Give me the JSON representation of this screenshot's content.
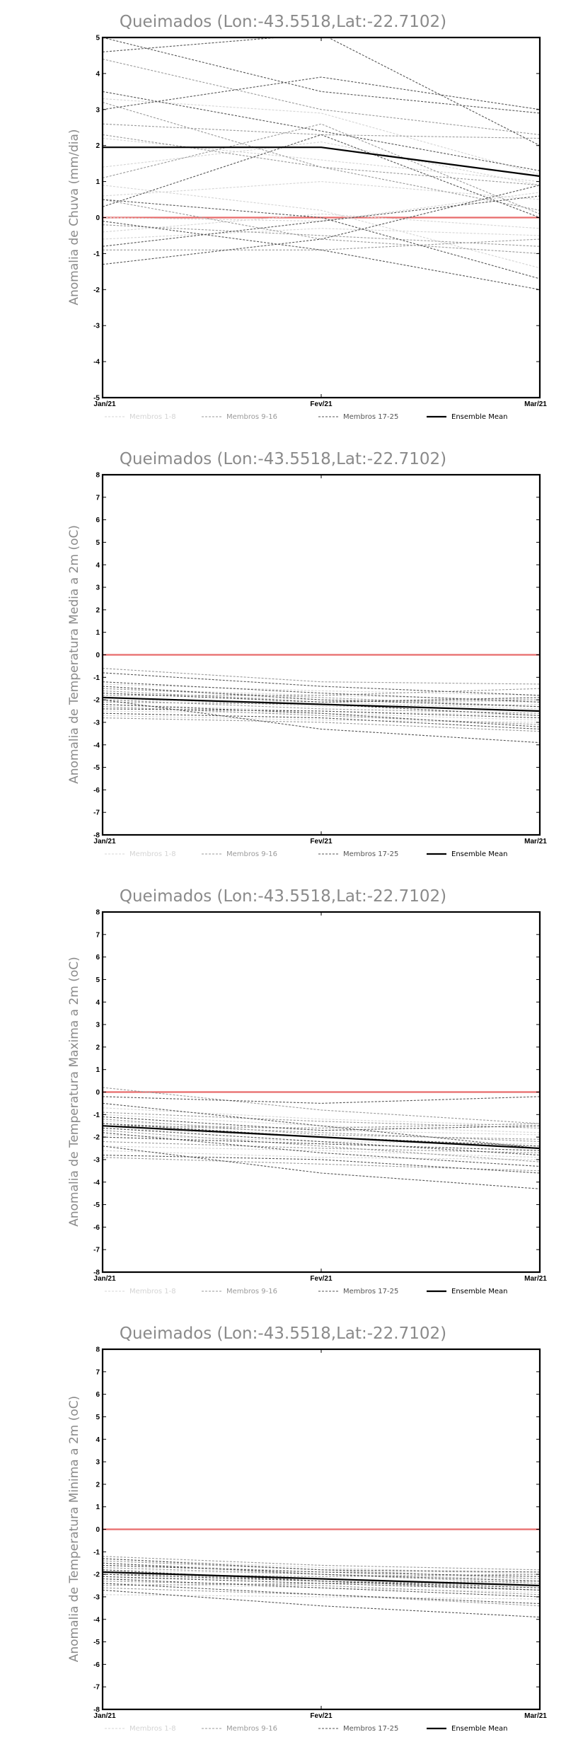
{
  "colors": {
    "group1": "#d4d4d4",
    "group2": "#9a9a9a",
    "group3": "#555555",
    "mean": "#000000",
    "zero_line": "#e86b6b",
    "text": "#8a8a8a"
  },
  "chart_data": [
    {
      "type": "line",
      "title": "Queimados (Lon:-43.5518,Lat:-22.7102)",
      "ylabel": "Anomalia de Chuva (mm/dia)",
      "x": [
        "Jan/21",
        "Fev/21",
        "Mar/21"
      ],
      "ylim": [
        -5,
        5
      ],
      "yticks": [
        -5,
        -4,
        -3,
        -2,
        -1,
        0,
        1,
        2,
        3,
        4,
        5
      ],
      "zero_line": 0,
      "grid": false,
      "legend": {
        "position": "bottom",
        "entries": [
          "Membros 1-8",
          "Membros 9-16",
          "Membros 17-25",
          "Ensemble Mean"
        ]
      },
      "series": [
        {
          "group": 1,
          "values": [
            3.3,
            2.9,
            1.2
          ]
        },
        {
          "group": 1,
          "values": [
            1.4,
            2.1,
            0.9
          ]
        },
        {
          "group": 1,
          "values": [
            0.6,
            1.0,
            0.5
          ]
        },
        {
          "group": 1,
          "values": [
            0.0,
            -0.1,
            0.7
          ]
        },
        {
          "group": 1,
          "values": [
            -0.4,
            0.1,
            -0.3
          ]
        },
        {
          "group": 1,
          "values": [
            2.2,
            1.6,
            1.0
          ]
        },
        {
          "group": 1,
          "values": [
            -0.6,
            -0.3,
            -0.5
          ]
        },
        {
          "group": 1,
          "values": [
            0.9,
            0.2,
            -1.4
          ]
        },
        {
          "group": 2,
          "values": [
            4.4,
            3.0,
            2.3
          ]
        },
        {
          "group": 2,
          "values": [
            3.2,
            1.4,
            0.2
          ]
        },
        {
          "group": 2,
          "values": [
            2.3,
            1.4,
            0.9
          ]
        },
        {
          "group": 2,
          "values": [
            0.5,
            -0.6,
            -1.0
          ]
        },
        {
          "group": 2,
          "values": [
            -0.2,
            -0.5,
            -0.8
          ]
        },
        {
          "group": 2,
          "values": [
            1.1,
            2.6,
            0.1
          ]
        },
        {
          "group": 2,
          "values": [
            -0.9,
            -0.9,
            -0.6
          ]
        },
        {
          "group": 2,
          "values": [
            2.6,
            2.3,
            2.2
          ]
        },
        {
          "group": 3,
          "values": [
            5.0,
            3.5,
            2.9
          ]
        },
        {
          "group": 3,
          "values": [
            3.5,
            2.4,
            1.3
          ]
        },
        {
          "group": 3,
          "values": [
            3.0,
            3.9,
            3.0
          ]
        },
        {
          "group": 3,
          "values": [
            0.3,
            2.3,
            0.0
          ]
        },
        {
          "group": 3,
          "values": [
            -0.1,
            -0.9,
            -2.0
          ]
        },
        {
          "group": 3,
          "values": [
            -1.3,
            -0.6,
            0.9
          ]
        },
        {
          "group": 3,
          "values": [
            -0.8,
            -0.1,
            0.6
          ]
        },
        {
          "group": 3,
          "values": [
            4.6,
            5.1,
            2.0
          ]
        },
        {
          "group": 3,
          "values": [
            0.5,
            0.0,
            -1.7
          ]
        },
        {
          "group": "mean",
          "values": [
            1.95,
            1.95,
            1.15
          ]
        }
      ]
    },
    {
      "type": "line",
      "title": "Queimados (Lon:-43.5518,Lat:-22.7102)",
      "ylabel": "Anomalia de Temperatura Media a 2m (oC)",
      "x": [
        "Jan/21",
        "Fev/21",
        "Mar/21"
      ],
      "ylim": [
        -8,
        8
      ],
      "yticks": [
        -8,
        -7,
        -6,
        -5,
        -4,
        -3,
        -2,
        -1,
        0,
        1,
        2,
        3,
        4,
        5,
        6,
        7,
        8
      ],
      "zero_line": 0,
      "grid": false,
      "legend": {
        "position": "bottom",
        "entries": [
          "Membros 1-8",
          "Membros 9-16",
          "Membros 17-25",
          "Ensemble Mean"
        ]
      },
      "series": [
        {
          "group": 1,
          "values": [
            -1.5,
            -1.8,
            -2.0
          ]
        },
        {
          "group": 1,
          "values": [
            -2.0,
            -2.1,
            -2.4
          ]
        },
        {
          "group": 1,
          "values": [
            -1.7,
            -2.0,
            -2.1
          ]
        },
        {
          "group": 1,
          "values": [
            -2.2,
            -2.5,
            -2.7
          ]
        },
        {
          "group": 1,
          "values": [
            -1.3,
            -1.6,
            -1.8
          ]
        },
        {
          "group": 1,
          "values": [
            -2.5,
            -2.6,
            -2.9
          ]
        },
        {
          "group": 1,
          "values": [
            -1.9,
            -2.3,
            -2.2
          ]
        },
        {
          "group": 1,
          "values": [
            -2.7,
            -2.9,
            -3.0
          ]
        },
        {
          "group": 2,
          "values": [
            -0.6,
            -1.2,
            -1.3
          ]
        },
        {
          "group": 2,
          "values": [
            -1.5,
            -1.9,
            -2.3
          ]
        },
        {
          "group": 2,
          "values": [
            -2.0,
            -2.4,
            -2.6
          ]
        },
        {
          "group": 2,
          "values": [
            -1.8,
            -1.8,
            -1.5
          ]
        },
        {
          "group": 2,
          "values": [
            -2.3,
            -2.7,
            -3.1
          ]
        },
        {
          "group": 2,
          "values": [
            -2.8,
            -3.0,
            -3.4
          ]
        },
        {
          "group": 2,
          "values": [
            -1.6,
            -2.1,
            -2.0
          ]
        },
        {
          "group": 2,
          "values": [
            -2.1,
            -2.2,
            -2.5
          ]
        },
        {
          "group": 3,
          "values": [
            -0.8,
            -1.4,
            -1.8
          ]
        },
        {
          "group": 3,
          "values": [
            -1.4,
            -2.0,
            -2.3
          ]
        },
        {
          "group": 3,
          "values": [
            -2.0,
            -3.3,
            -3.9
          ]
        },
        {
          "group": 3,
          "values": [
            -2.6,
            -2.8,
            -3.3
          ]
        },
        {
          "group": 3,
          "values": [
            -1.2,
            -1.7,
            -2.1
          ]
        },
        {
          "group": 3,
          "values": [
            -1.9,
            -2.2,
            -2.7
          ]
        },
        {
          "group": 3,
          "values": [
            -2.4,
            -2.5,
            -2.8
          ]
        },
        {
          "group": 3,
          "values": [
            -1.7,
            -2.1,
            -1.9
          ]
        },
        {
          "group": 3,
          "values": [
            -2.2,
            -2.6,
            -3.2
          ]
        },
        {
          "group": "mean",
          "values": [
            -1.9,
            -2.2,
            -2.5
          ]
        }
      ]
    },
    {
      "type": "line",
      "title": "Queimados (Lon:-43.5518,Lat:-22.7102)",
      "ylabel": "Anomalia de Temperatura Maxima a 2m (oC)",
      "x": [
        "Jan/21",
        "Fev/21",
        "Mar/21"
      ],
      "ylim": [
        -8,
        8
      ],
      "yticks": [
        -8,
        -7,
        -6,
        -5,
        -4,
        -3,
        -2,
        -1,
        0,
        1,
        2,
        3,
        4,
        5,
        6,
        7,
        8
      ],
      "zero_line": 0,
      "grid": false,
      "legend": {
        "position": "bottom",
        "entries": [
          "Membros 1-8",
          "Membros 9-16",
          "Membros 17-25",
          "Ensemble Mean"
        ]
      },
      "series": [
        {
          "group": 1,
          "values": [
            -1.0,
            -1.5,
            -1.8
          ]
        },
        {
          "group": 1,
          "values": [
            -1.6,
            -2.0,
            -2.4
          ]
        },
        {
          "group": 1,
          "values": [
            -2.0,
            -2.3,
            -2.6
          ]
        },
        {
          "group": 1,
          "values": [
            -1.3,
            -1.7,
            -1.9
          ]
        },
        {
          "group": 1,
          "values": [
            -2.4,
            -2.6,
            -2.9
          ]
        },
        {
          "group": 1,
          "values": [
            -0.7,
            -1.2,
            -1.5
          ]
        },
        {
          "group": 1,
          "values": [
            -1.9,
            -2.2,
            -2.3
          ]
        },
        {
          "group": 1,
          "values": [
            -2.6,
            -2.9,
            -3.0
          ]
        },
        {
          "group": 2,
          "values": [
            0.2,
            -0.8,
            -1.4
          ]
        },
        {
          "group": 2,
          "values": [
            -1.4,
            -1.8,
            -2.2
          ]
        },
        {
          "group": 2,
          "values": [
            -1.7,
            -2.4,
            -3.1
          ]
        },
        {
          "group": 2,
          "values": [
            -2.2,
            -2.5,
            -2.7
          ]
        },
        {
          "group": 2,
          "values": [
            -0.9,
            -1.3,
            -1.6
          ]
        },
        {
          "group": 2,
          "values": [
            -2.9,
            -3.2,
            -3.5
          ]
        },
        {
          "group": 2,
          "values": [
            -1.2,
            -1.9,
            -2.1
          ]
        },
        {
          "group": 2,
          "values": [
            -1.5,
            -1.6,
            -1.4
          ]
        },
        {
          "group": 3,
          "values": [
            -0.2,
            -0.5,
            -0.2
          ]
        },
        {
          "group": 3,
          "values": [
            -2.4,
            -3.6,
            -4.3
          ]
        },
        {
          "group": 3,
          "values": [
            -0.5,
            -1.5,
            -2.5
          ]
        },
        {
          "group": 3,
          "values": [
            -2.8,
            -3.0,
            -3.6
          ]
        },
        {
          "group": 3,
          "values": [
            -1.6,
            -2.2,
            -2.8
          ]
        },
        {
          "group": 3,
          "values": [
            -2.0,
            -2.3,
            -2.6
          ]
        },
        {
          "group": 3,
          "values": [
            -1.1,
            -1.7,
            -1.5
          ]
        },
        {
          "group": 3,
          "values": [
            -1.8,
            -2.7,
            -3.3
          ]
        },
        {
          "group": 3,
          "values": [
            -1.4,
            -2.0,
            -2.4
          ]
        },
        {
          "group": "mean",
          "values": [
            -1.5,
            -2.0,
            -2.5
          ]
        }
      ]
    },
    {
      "type": "line",
      "title": "Queimados (Lon:-43.5518,Lat:-22.7102)",
      "ylabel": "Anomalia de Temperatura Minima a 2m (oC)",
      "x": [
        "Jan/21",
        "Fev/21",
        "Mar/21"
      ],
      "ylim": [
        -8,
        8
      ],
      "yticks": [
        -8,
        -7,
        -6,
        -5,
        -4,
        -3,
        -2,
        -1,
        0,
        1,
        2,
        3,
        4,
        5,
        6,
        7,
        8
      ],
      "zero_line": 0,
      "grid": false,
      "legend": {
        "position": "bottom",
        "entries": [
          "Membros 1-8",
          "Membros 9-16",
          "Membros 17-25",
          "Ensemble Mean"
        ]
      },
      "series": [
        {
          "group": 1,
          "values": [
            -1.3,
            -1.7,
            -2.0
          ]
        },
        {
          "group": 1,
          "values": [
            -1.8,
            -2.0,
            -2.2
          ]
        },
        {
          "group": 1,
          "values": [
            -2.1,
            -2.3,
            -2.4
          ]
        },
        {
          "group": 1,
          "values": [
            -1.6,
            -1.9,
            -1.9
          ]
        },
        {
          "group": 1,
          "values": [
            -2.4,
            -2.6,
            -2.8
          ]
        },
        {
          "group": 1,
          "values": [
            -2.9,
            -3.0,
            -3.1
          ]
        },
        {
          "group": 1,
          "values": [
            -1.5,
            -1.9,
            -2.3
          ]
        },
        {
          "group": 1,
          "values": [
            -2.2,
            -2.2,
            -2.6
          ]
        },
        {
          "group": 2,
          "values": [
            -1.2,
            -1.6,
            -1.8
          ]
        },
        {
          "group": 2,
          "values": [
            -1.7,
            -2.0,
            -2.4
          ]
        },
        {
          "group": 2,
          "values": [
            -2.3,
            -2.5,
            -2.9
          ]
        },
        {
          "group": 2,
          "values": [
            -2.0,
            -2.1,
            -2.0
          ]
        },
        {
          "group": 2,
          "values": [
            -2.6,
            -2.9,
            -3.4
          ]
        },
        {
          "group": 2,
          "values": [
            -1.4,
            -1.8,
            -2.2
          ]
        },
        {
          "group": 2,
          "values": [
            -1.9,
            -2.3,
            -2.5
          ]
        },
        {
          "group": 2,
          "values": [
            -2.5,
            -2.4,
            -2.3
          ]
        },
        {
          "group": 3,
          "values": [
            -2.7,
            -3.4,
            -3.9
          ]
        },
        {
          "group": 3,
          "values": [
            -1.5,
            -2.0,
            -2.3
          ]
        },
        {
          "group": 3,
          "values": [
            -2.0,
            -2.3,
            -2.6
          ]
        },
        {
          "group": 3,
          "values": [
            -1.8,
            -2.3,
            -2.7
          ]
        },
        {
          "group": 3,
          "values": [
            -2.4,
            -2.9,
            -3.3
          ]
        },
        {
          "group": 3,
          "values": [
            -1.3,
            -1.8,
            -1.9
          ]
        },
        {
          "group": 3,
          "values": [
            -2.2,
            -2.6,
            -3.0
          ]
        },
        {
          "group": 3,
          "values": [
            -1.6,
            -1.9,
            -2.1
          ]
        },
        {
          "group": 3,
          "values": [
            -2.1,
            -2.4,
            -2.7
          ]
        },
        {
          "group": "mean",
          "values": [
            -1.9,
            -2.2,
            -2.5
          ]
        }
      ]
    }
  ]
}
